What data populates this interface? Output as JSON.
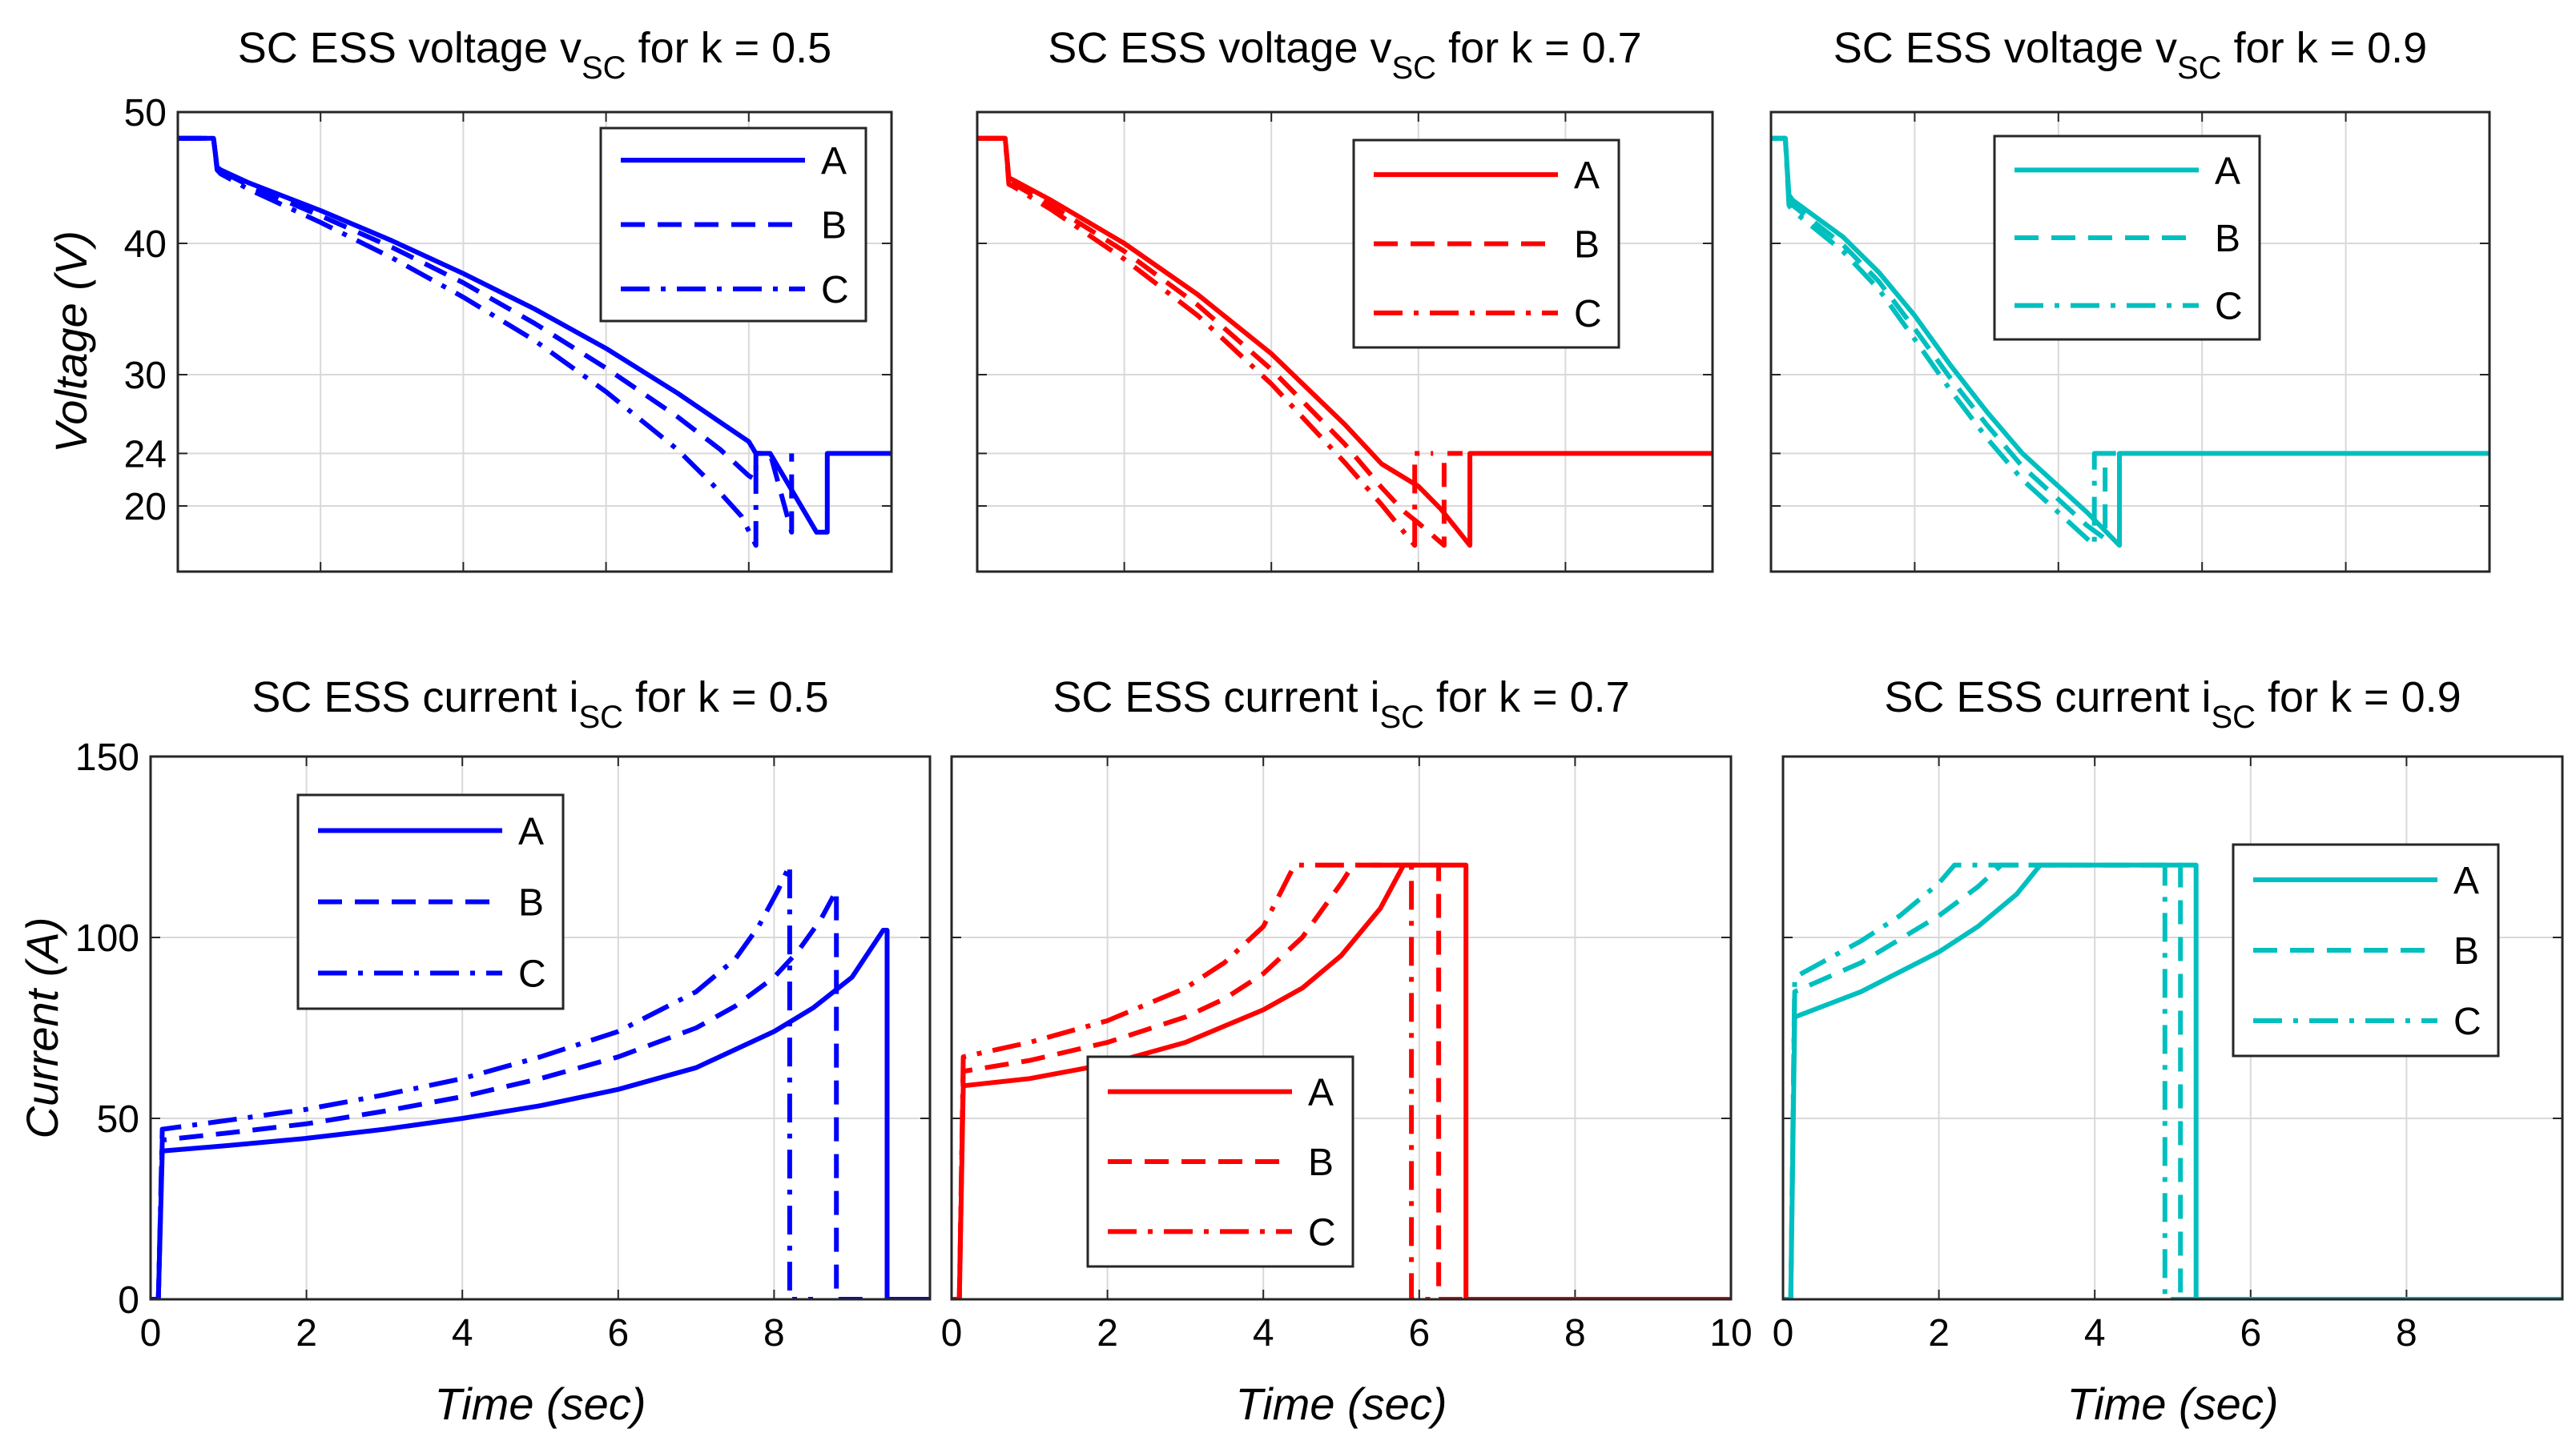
{
  "chart_data": [
    {
      "type": "line",
      "title_main": "SC ESS voltage v",
      "title_sub": "SC",
      "title_tail": " for k = 0.5",
      "ylabel": "Voltage (V)",
      "xlabel": "",
      "xlim": [
        0,
        10
      ],
      "ylim": [
        15,
        50
      ],
      "xticks": [
        0,
        2,
        4,
        6,
        8
      ],
      "xtick_labels": [],
      "yticks": [
        20,
        24,
        30,
        40,
        50
      ],
      "ytick_labels": [
        "20",
        "24",
        "30",
        "40",
        "50"
      ],
      "color": "#0000ff",
      "legend": {
        "position": "top-right",
        "entries": [
          "A",
          "B",
          "C"
        ]
      },
      "series": [
        {
          "name": "A",
          "dash": "solid",
          "x": [
            0,
            0.5,
            0.55,
            0.6,
            1,
            2,
            3,
            4,
            5,
            6,
            7,
            8,
            8.1,
            8.3,
            8.95,
            9.1,
            9.1,
            10
          ],
          "y": [
            48,
            48,
            45.8,
            45.6,
            44.6,
            42.5,
            40.2,
            37.7,
            35,
            32,
            28.6,
            24.9,
            24,
            24,
            18,
            18,
            24,
            24
          ]
        },
        {
          "name": "B",
          "dash": "dashed",
          "x": [
            0,
            0.5,
            0.55,
            0.6,
            1,
            2,
            3,
            4,
            5,
            6,
            7,
            7.6,
            8,
            8.1,
            8.1,
            8.3,
            8.6,
            8.6
          ],
          "y": [
            48,
            48,
            45.7,
            45.5,
            44.4,
            42.1,
            39.7,
            37,
            33.9,
            30.5,
            26.8,
            24.3,
            22.3,
            22,
            24,
            24,
            18,
            24
          ]
        },
        {
          "name": "C",
          "dash": "dashdot",
          "x": [
            0,
            0.5,
            0.55,
            0.6,
            1,
            2,
            3,
            4,
            5,
            6,
            7,
            7.5,
            7.9,
            8.1,
            8.1,
            8.3
          ],
          "y": [
            48,
            48,
            45.6,
            45.3,
            44.1,
            41.6,
            38.9,
            35.9,
            32.6,
            28.7,
            24.3,
            21.6,
            19.2,
            17,
            24,
            24
          ]
        }
      ]
    },
    {
      "type": "line",
      "title_main": "SC ESS voltage v",
      "title_sub": "SC",
      "title_tail": " for k = 0.7",
      "ylabel": "",
      "xlabel": "",
      "xlim": [
        0,
        10
      ],
      "ylim": [
        15,
        50
      ],
      "xticks": [
        0,
        2,
        4,
        6,
        8
      ],
      "xtick_labels": [],
      "yticks": [
        20,
        24,
        30,
        40,
        50
      ],
      "ytick_labels": [],
      "color": "#ff0000",
      "legend": {
        "position": "top-left",
        "entries": [
          "A",
          "B",
          "C"
        ]
      },
      "series": [
        {
          "name": "A",
          "dash": "solid",
          "x": [
            0,
            0.38,
            0.43,
            0.5,
            1,
            2,
            3,
            4,
            5,
            5.5,
            6,
            6.3,
            6.7,
            6.7,
            10
          ],
          "y": [
            48,
            48,
            45,
            44.8,
            43.3,
            40,
            36.1,
            31.6,
            26.2,
            23.2,
            21.5,
            19.8,
            17,
            24,
            24
          ]
        },
        {
          "name": "B",
          "dash": "dashed",
          "x": [
            0,
            0.38,
            0.43,
            0.5,
            1,
            2,
            3,
            4,
            5,
            5.5,
            5.8,
            6,
            6.35,
            6.35,
            6.6
          ],
          "y": [
            48,
            48,
            44.8,
            44.5,
            42.9,
            39.4,
            35.3,
            30.4,
            24.7,
            21.4,
            19.6,
            18.7,
            17,
            24,
            24
          ]
        },
        {
          "name": "C",
          "dash": "dashdot",
          "x": [
            0,
            0.38,
            0.43,
            0.5,
            1,
            2,
            3,
            4,
            5,
            5.5,
            5.95,
            5.95,
            6.2
          ],
          "y": [
            48,
            48,
            44.5,
            44.3,
            42.6,
            38.8,
            34.5,
            29.3,
            23.3,
            20.1,
            17,
            24,
            24
          ]
        }
      ]
    },
    {
      "type": "line",
      "title_main": "SC ESS voltage v",
      "title_sub": "SC",
      "title_tail": " for k = 0.9",
      "ylabel": "",
      "xlabel": "",
      "xlim": [
        0,
        10
      ],
      "ylim": [
        15,
        50
      ],
      "xticks": [
        0,
        2,
        4,
        6,
        8
      ],
      "xtick_labels": [],
      "yticks": [
        20,
        24,
        30,
        40,
        50
      ],
      "ytick_labels": [],
      "color": "#00bfbf",
      "legend": {
        "position": "top-left",
        "entries": [
          "A",
          "B",
          "C"
        ]
      },
      "series": [
        {
          "name": "A",
          "dash": "solid",
          "x": [
            0,
            0.2,
            0.25,
            0.3,
            1,
            1.5,
            2,
            2.5,
            3,
            3.5,
            4,
            4.4,
            4.85,
            4.85,
            10
          ],
          "y": [
            48,
            48,
            43.7,
            43.3,
            40.5,
            37.8,
            34.5,
            30.7,
            27.2,
            24,
            21.5,
            19.5,
            17,
            24,
            24
          ]
        },
        {
          "name": "B",
          "dash": "dashed",
          "x": [
            0,
            0.2,
            0.25,
            0.3,
            1,
            1.5,
            2,
            2.5,
            3,
            3.5,
            4,
            4.4,
            4.65,
            4.65,
            4.8
          ],
          "y": [
            48,
            48,
            43.3,
            42.9,
            39.9,
            37.1,
            33.5,
            29.7,
            26.2,
            23,
            20.5,
            18.5,
            17.5,
            24,
            24
          ]
        },
        {
          "name": "C",
          "dash": "dashdot",
          "x": [
            0,
            0.2,
            0.25,
            0.3,
            1,
            1.5,
            2,
            2.5,
            3,
            3.5,
            4,
            4.3,
            4.5,
            4.5,
            4.65
          ],
          "y": [
            48,
            48,
            42.9,
            42.5,
            39.4,
            36.5,
            32.7,
            28.8,
            25.2,
            22,
            19.5,
            18,
            17,
            24,
            24
          ]
        }
      ]
    },
    {
      "type": "line",
      "title_main": "SC ESS current i",
      "title_sub": "SC",
      "title_tail": " for k = 0.5",
      "ylabel": "Current (A)",
      "xlabel": "Time (sec)",
      "xlim": [
        0,
        10
      ],
      "ylim": [
        0,
        150
      ],
      "xticks": [
        0,
        2,
        4,
        6,
        8
      ],
      "xtick_labels": [
        "0",
        "2",
        "4",
        "6",
        "8"
      ],
      "yticks": [
        0,
        50,
        100,
        150
      ],
      "ytick_labels": [
        "0",
        "50",
        "100",
        "150"
      ],
      "color": "#0000ff",
      "legend": {
        "position": "top-left",
        "entries": [
          "A",
          "B",
          "C"
        ]
      },
      "series": [
        {
          "name": "A",
          "dash": "solid",
          "x": [
            0,
            0.1,
            0.15,
            1,
            2,
            3,
            4,
            5,
            6,
            7,
            8,
            8.5,
            9,
            9.4,
            9.45,
            9.45,
            10
          ],
          "y": [
            0,
            0,
            41,
            42.5,
            44.5,
            47,
            50,
            53.5,
            58,
            64,
            74,
            80.5,
            89,
            102,
            102,
            0,
            0
          ]
        },
        {
          "name": "B",
          "dash": "dashed",
          "x": [
            0,
            0.1,
            0.15,
            1,
            2,
            3,
            4,
            5,
            6,
            7,
            7.5,
            8,
            8.3,
            8.6,
            8.8,
            8.8,
            9.2
          ],
          "y": [
            0,
            0,
            44,
            46,
            48.5,
            52,
            56,
            61,
            67,
            75,
            81,
            89,
            96,
            105,
            113,
            0,
            0
          ]
        },
        {
          "name": "C",
          "dash": "dashdot",
          "x": [
            0,
            0.1,
            0.15,
            1,
            2,
            3,
            4,
            5,
            6,
            7,
            7.5,
            7.8,
            8.05,
            8.2,
            8.2,
            8.5
          ],
          "y": [
            0,
            0,
            47,
            49.5,
            52.5,
            56.5,
            61,
            67,
            74,
            85,
            94,
            103,
            113,
            120,
            0,
            0
          ]
        }
      ]
    },
    {
      "type": "line",
      "title_main": "SC ESS current i",
      "title_sub": "SC",
      "title_tail": " for k = 0.7",
      "ylabel": "",
      "xlabel": "Time (sec)",
      "xlim": [
        0,
        10
      ],
      "ylim": [
        0,
        150
      ],
      "xticks": [
        0,
        2,
        4,
        6,
        8,
        10
      ],
      "xtick_labels": [
        "0",
        "2",
        "4",
        "6",
        "8",
        "10"
      ],
      "yticks": [
        0,
        50,
        100,
        150
      ],
      "ytick_labels": [],
      "color": "#ff0000",
      "legend": {
        "position": "bottom-center",
        "entries": [
          "A",
          "B",
          "C"
        ]
      },
      "series": [
        {
          "name": "A",
          "dash": "solid",
          "x": [
            0,
            0.1,
            0.15,
            1,
            2,
            3,
            4,
            4.5,
            5,
            5.5,
            5.8,
            6.6,
            6.6,
            10
          ],
          "y": [
            0,
            0,
            59,
            61,
            65,
            71,
            80,
            86,
            95,
            108,
            120,
            120,
            0,
            0
          ]
        },
        {
          "name": "B",
          "dash": "dashed",
          "x": [
            0,
            0.1,
            0.15,
            1,
            2,
            3,
            3.5,
            4,
            4.5,
            5,
            5.15,
            6.25,
            6.25,
            6.6
          ],
          "y": [
            0,
            0,
            63,
            66,
            71,
            78,
            83,
            90,
            100,
            115,
            120,
            120,
            0,
            0
          ]
        },
        {
          "name": "C",
          "dash": "dashdot",
          "x": [
            0,
            0.1,
            0.15,
            1,
            2,
            3,
            3.5,
            4,
            4.4,
            5.9,
            5.9,
            6.2
          ],
          "y": [
            0,
            0,
            67,
            71,
            77,
            86,
            93,
            103,
            120,
            120,
            0,
            0
          ]
        }
      ]
    },
    {
      "type": "line",
      "title_main": "SC ESS current i",
      "title_sub": "SC",
      "title_tail": " for k = 0.9",
      "ylabel": "",
      "xlabel": "Time (sec)",
      "xlim": [
        0,
        10
      ],
      "ylim": [
        0,
        150
      ],
      "xticks": [
        0,
        2,
        4,
        6,
        8
      ],
      "xtick_labels": [
        "0",
        "2",
        "4",
        "6",
        "8"
      ],
      "yticks": [
        0,
        50,
        100,
        150
      ],
      "ytick_labels": [],
      "color": "#00bfbf",
      "legend": {
        "position": "top-right",
        "entries": [
          "A",
          "B",
          "C"
        ]
      },
      "series": [
        {
          "name": "A",
          "dash": "solid",
          "x": [
            0,
            0.1,
            0.15,
            1,
            2,
            2.5,
            3,
            3.3,
            5.3,
            5.3,
            10
          ],
          "y": [
            0,
            0,
            78,
            85,
            96,
            103,
            112,
            120,
            120,
            0,
            0
          ]
        },
        {
          "name": "B",
          "dash": "dashed",
          "x": [
            0,
            0.1,
            0.15,
            1,
            2,
            2.5,
            2.8,
            5.1,
            5.1,
            5.4
          ],
          "y": [
            0,
            0,
            85,
            93,
            106,
            114,
            120,
            120,
            0,
            0
          ]
        },
        {
          "name": "C",
          "dash": "dashdot",
          "x": [
            0,
            0.1,
            0.15,
            1,
            1.5,
            2,
            2.2,
            4.9,
            4.9,
            5.2
          ],
          "y": [
            0,
            0,
            89,
            99,
            106,
            115,
            120,
            120,
            0,
            0
          ]
        }
      ]
    }
  ]
}
